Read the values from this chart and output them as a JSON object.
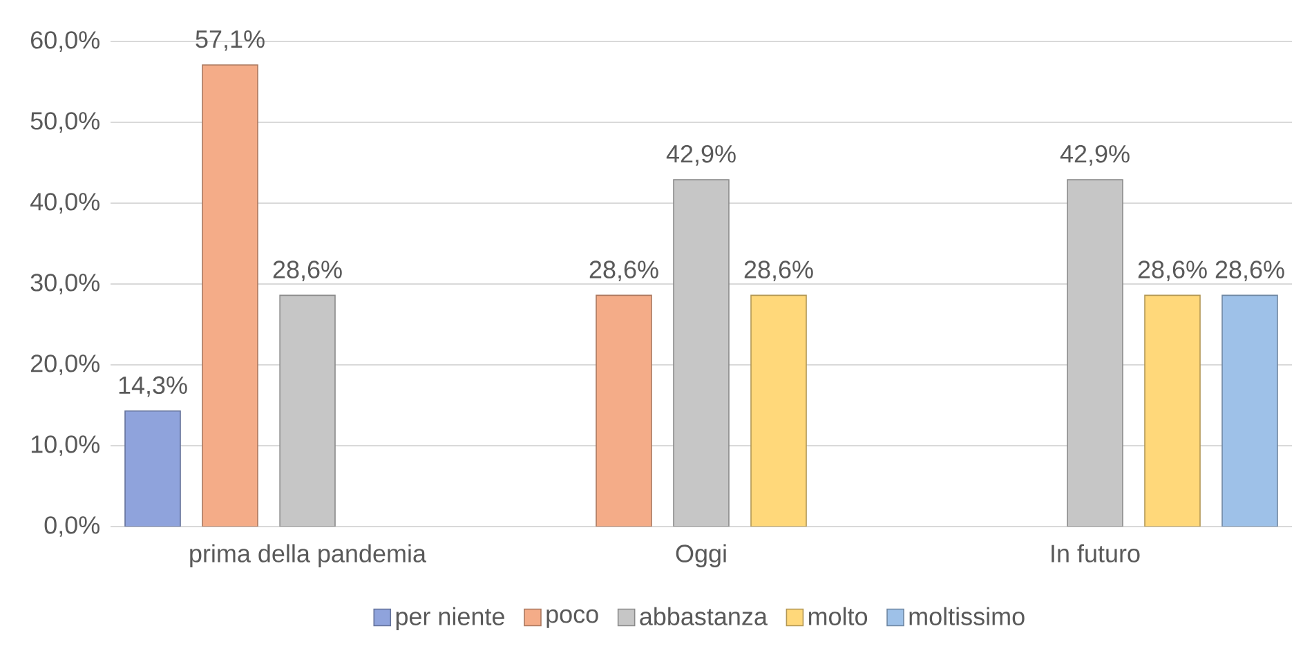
{
  "chart_data": {
    "type": "bar",
    "categories": [
      "prima della pandemia",
      "Oggi",
      "In futuro"
    ],
    "series": [
      {
        "name": "per niente",
        "color": "#8fa3dc",
        "values": [
          14.3,
          null,
          null
        ],
        "value_labels": [
          "14,3%",
          null,
          null
        ]
      },
      {
        "name": "poco",
        "color": "#f4ac88",
        "values": [
          57.1,
          28.6,
          null
        ],
        "value_labels": [
          "57,1%",
          "28,6%",
          null
        ]
      },
      {
        "name": "abbastanza",
        "color": "#c6c6c6",
        "values": [
          28.6,
          42.9,
          42.9
        ],
        "value_labels": [
          "28,6%",
          "42,9%",
          "42,9%"
        ]
      },
      {
        "name": "molto",
        "color": "#ffd87a",
        "values": [
          null,
          28.6,
          28.6
        ],
        "value_labels": [
          null,
          "28,6%",
          "28,6%"
        ]
      },
      {
        "name": "moltissimo",
        "color": "#9ec1e8",
        "values": [
          null,
          null,
          28.6
        ],
        "value_labels": [
          null,
          null,
          "28,6%"
        ]
      }
    ],
    "ylim": [
      0,
      60
    ],
    "yticks": [
      {
        "value": 0,
        "label": "0,0%"
      },
      {
        "value": 10,
        "label": "10,0%"
      },
      {
        "value": 20,
        "label": "20,0%"
      },
      {
        "value": 30,
        "label": "30,0%"
      },
      {
        "value": 40,
        "label": "40,0%"
      },
      {
        "value": 50,
        "label": "50,0%"
      },
      {
        "value": 60,
        "label": "60,0%"
      }
    ],
    "grid": "y",
    "legend": "bottom"
  }
}
